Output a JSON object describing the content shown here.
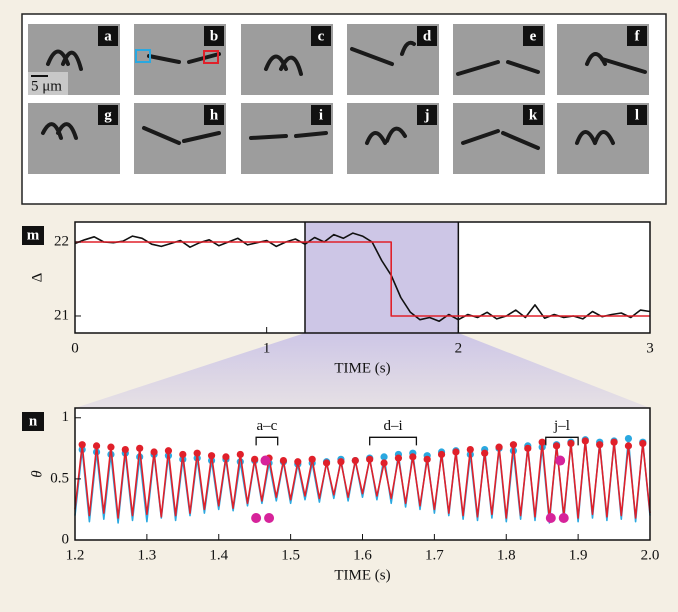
{
  "figure": {
    "panel_labels": [
      "a",
      "b",
      "c",
      "d",
      "e",
      "f",
      "g",
      "h",
      "i",
      "j",
      "k",
      "l"
    ],
    "scale_bar": "5 μm"
  },
  "chart_data": [
    {
      "type": "line",
      "label": "m",
      "xlabel": "TIME (s)",
      "ylabel": "Δ",
      "xlim": [
        0,
        3
      ],
      "ylim": [
        20.77,
        22.27
      ],
      "xticks": [
        0,
        1,
        2,
        3
      ],
      "yticks": [
        21,
        22
      ],
      "shade": [
        1.2,
        2.0
      ],
      "shade_color": "#cdc6e6",
      "series": [
        {
          "color": "#111111",
          "x": [
            0,
            0.05,
            0.1,
            0.15,
            0.2,
            0.25,
            0.3,
            0.35,
            0.4,
            0.45,
            0.5,
            0.55,
            0.6,
            0.65,
            0.7,
            0.75,
            0.8,
            0.85,
            0.9,
            0.95,
            1.0,
            1.05,
            1.1,
            1.15,
            1.2,
            1.25,
            1.3,
            1.35,
            1.4,
            1.45,
            1.5,
            1.55,
            1.6,
            1.65,
            1.7,
            1.75,
            1.8,
            1.85,
            1.9,
            1.95,
            2.0,
            2.05,
            2.1,
            2.15,
            2.2,
            2.25,
            2.3,
            2.35,
            2.4,
            2.45,
            2.5,
            2.55,
            2.6,
            2.65,
            2.7,
            2.75,
            2.8,
            2.85,
            2.9,
            2.95,
            3.0
          ],
          "values": [
            21.98,
            22.03,
            22.07,
            22.0,
            21.99,
            22.01,
            22.08,
            22.05,
            21.97,
            21.94,
            21.98,
            22.02,
            21.93,
            21.99,
            22.03,
            21.95,
            22.0,
            22.05,
            21.96,
            21.99,
            22.02,
            21.94,
            22.0,
            22.04,
            21.97,
            22.06,
            22.0,
            22.1,
            22.05,
            22.12,
            22.08,
            22.0,
            21.75,
            21.55,
            21.25,
            21.05,
            20.95,
            20.98,
            20.93,
            21.02,
            20.95,
            21.02,
            20.98,
            21.05,
            20.96,
            21.0,
            21.08,
            20.98,
            21.15,
            20.97,
            21.02,
            20.98,
            21.0,
            20.96,
            21.06,
            20.99,
            21.02,
            21.04,
            20.98,
            21.08,
            21.06
          ]
        },
        {
          "color": "#e0202a",
          "x": [
            0,
            1.65,
            1.65,
            3
          ],
          "values": [
            22,
            22,
            21,
            21
          ]
        }
      ]
    },
    {
      "type": "line",
      "label": "n",
      "xlabel": "TIME (s)",
      "ylabel": "θ",
      "xlim": [
        1.2,
        2.0
      ],
      "ylim": [
        0,
        1.08
      ],
      "xticks": [
        1.2,
        1.3,
        1.4,
        1.5,
        1.6,
        1.7,
        1.8,
        1.9,
        {
          "value": 2,
          "label": "2.0"
        }
      ],
      "yticks": [
        0,
        0.5,
        1
      ],
      "annotations": [
        {
          "text": "a–c",
          "x": [
            1.452,
            1.482
          ],
          "y": 0.84
        },
        {
          "text": "d–i",
          "x": [
            1.61,
            1.675
          ],
          "y": 0.84
        },
        {
          "text": "j–l",
          "x": [
            1.855,
            1.9
          ],
          "y": 0.84
        }
      ],
      "series": [
        {
          "color": "#2aa8e0",
          "peak_markers": true,
          "x": [
            1.2,
            1.21,
            1.22,
            1.23,
            1.24,
            1.25,
            1.26,
            1.27,
            1.28,
            1.29,
            1.3,
            1.31,
            1.32,
            1.33,
            1.34,
            1.35,
            1.36,
            1.37,
            1.38,
            1.39,
            1.4,
            1.41,
            1.42,
            1.43,
            1.44,
            1.45,
            1.46,
            1.47,
            1.48,
            1.49,
            1.5,
            1.51,
            1.52,
            1.53,
            1.54,
            1.55,
            1.56,
            1.57,
            1.58,
            1.59,
            1.6,
            1.61,
            1.62,
            1.63,
            1.64,
            1.65,
            1.66,
            1.67,
            1.68,
            1.69,
            1.7,
            1.71,
            1.72,
            1.73,
            1.74,
            1.75,
            1.76,
            1.77,
            1.78,
            1.79,
            1.8,
            1.81,
            1.82,
            1.83,
            1.84,
            1.85,
            1.86,
            1.87,
            1.88,
            1.89,
            1.9,
            1.91,
            1.92,
            1.93,
            1.94,
            1.95,
            1.96,
            1.97,
            1.98,
            1.99,
            2.0
          ],
          "values": [
            0.2,
            0.74,
            0.15,
            0.72,
            0.17,
            0.7,
            0.14,
            0.71,
            0.16,
            0.68,
            0.15,
            0.7,
            0.18,
            0.69,
            0.16,
            0.66,
            0.2,
            0.67,
            0.22,
            0.65,
            0.25,
            0.66,
            0.24,
            0.64,
            0.28,
            0.65,
            0.3,
            0.63,
            0.32,
            0.64,
            0.3,
            0.62,
            0.33,
            0.63,
            0.31,
            0.64,
            0.34,
            0.66,
            0.32,
            0.65,
            0.35,
            0.67,
            0.33,
            0.68,
            0.3,
            0.7,
            0.27,
            0.71,
            0.25,
            0.69,
            0.22,
            0.72,
            0.2,
            0.73,
            0.17,
            0.7,
            0.16,
            0.74,
            0.18,
            0.75,
            0.15,
            0.73,
            0.17,
            0.77,
            0.16,
            0.76,
            0.14,
            0.78,
            0.17,
            0.8,
            0.15,
            0.82,
            0.18,
            0.8,
            0.16,
            0.81,
            0.17,
            0.83,
            0.15,
            0.8,
            0.2
          ]
        },
        {
          "color": "#e0202a",
          "peak_markers": true,
          "x": [
            1.2,
            1.21,
            1.22,
            1.23,
            1.24,
            1.25,
            1.26,
            1.27,
            1.28,
            1.29,
            1.3,
            1.31,
            1.32,
            1.33,
            1.34,
            1.35,
            1.36,
            1.37,
            1.38,
            1.39,
            1.4,
            1.41,
            1.42,
            1.43,
            1.44,
            1.45,
            1.46,
            1.47,
            1.48,
            1.49,
            1.5,
            1.51,
            1.52,
            1.53,
            1.54,
            1.55,
            1.56,
            1.57,
            1.58,
            1.59,
            1.6,
            1.61,
            1.62,
            1.63,
            1.64,
            1.65,
            1.66,
            1.67,
            1.68,
            1.69,
            1.7,
            1.71,
            1.72,
            1.73,
            1.74,
            1.75,
            1.76,
            1.77,
            1.78,
            1.79,
            1.8,
            1.81,
            1.82,
            1.83,
            1.84,
            1.85,
            1.86,
            1.87,
            1.88,
            1.89,
            1.9,
            1.91,
            1.92,
            1.93,
            1.94,
            1.95,
            1.96,
            1.97,
            1.98,
            1.99,
            2.0
          ],
          "values": [
            0.25,
            0.78,
            0.2,
            0.77,
            0.22,
            0.76,
            0.18,
            0.74,
            0.2,
            0.75,
            0.21,
            0.72,
            0.19,
            0.73,
            0.2,
            0.7,
            0.22,
            0.71,
            0.25,
            0.69,
            0.28,
            0.68,
            0.26,
            0.7,
            0.3,
            0.66,
            0.32,
            0.67,
            0.35,
            0.65,
            0.33,
            0.64,
            0.36,
            0.66,
            0.34,
            0.63,
            0.37,
            0.64,
            0.35,
            0.65,
            0.38,
            0.66,
            0.36,
            0.63,
            0.34,
            0.67,
            0.3,
            0.68,
            0.28,
            0.66,
            0.25,
            0.7,
            0.22,
            0.72,
            0.2,
            0.74,
            0.19,
            0.71,
            0.21,
            0.76,
            0.18,
            0.78,
            0.2,
            0.75,
            0.19,
            0.8,
            0.17,
            0.77,
            0.2,
            0.79,
            0.18,
            0.81,
            0.21,
            0.78,
            0.19,
            0.8,
            0.2,
            0.77,
            0.18,
            0.79,
            0.22
          ]
        },
        {
          "color": "#d6239a",
          "mode": "markers",
          "x": [
            1.452,
            1.465,
            1.47,
            1.862,
            1.875,
            1.88
          ],
          "values": [
            0.18,
            0.65,
            0.18,
            0.18,
            0.65,
            0.18
          ]
        }
      ]
    }
  ]
}
